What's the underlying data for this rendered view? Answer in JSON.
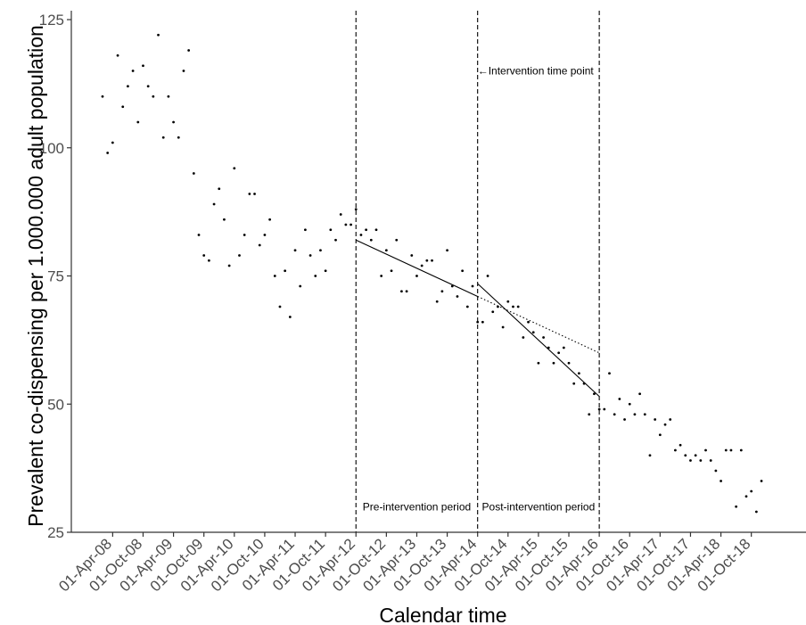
{
  "chart_data": {
    "type": "scatter",
    "title": "",
    "xlabel": "Calendar time",
    "ylabel": "Prevalent co-dispensing per 1.000.000 adult population",
    "ylim": [
      25,
      126
    ],
    "xlim": [
      -1.5,
      127.5
    ],
    "x_axis_note": "x values are months since the first observation month (Feb 2008)",
    "y_ticks": [
      25,
      50,
      75,
      100,
      125
    ],
    "x_ticks": [
      {
        "label": "01-Apr-08",
        "x": 2
      },
      {
        "label": "01-Oct-08",
        "x": 8
      },
      {
        "label": "01-Apr-09",
        "x": 14
      },
      {
        "label": "01-Oct-09",
        "x": 20
      },
      {
        "label": "01-Apr-10",
        "x": 26
      },
      {
        "label": "01-Oct-10",
        "x": 32
      },
      {
        "label": "01-Apr-11",
        "x": 38
      },
      {
        "label": "01-Oct-11",
        "x": 44
      },
      {
        "label": "01-Apr-12",
        "x": 50
      },
      {
        "label": "01-Oct-12",
        "x": 56
      },
      {
        "label": "01-Apr-13",
        "x": 62
      },
      {
        "label": "01-Oct-13",
        "x": 68
      },
      {
        "label": "01-Apr-14",
        "x": 74
      },
      {
        "label": "01-Oct-14",
        "x": 80
      },
      {
        "label": "01-Apr-15",
        "x": 86
      },
      {
        "label": "01-Oct-15",
        "x": 92
      },
      {
        "label": "01-Apr-16",
        "x": 98
      },
      {
        "label": "01-Oct-16",
        "x": 104
      },
      {
        "label": "01-Apr-17",
        "x": 110
      },
      {
        "label": "01-Oct-17",
        "x": 116
      },
      {
        "label": "01-Apr-18",
        "x": 122
      },
      {
        "label": "01-Oct-18",
        "x": 128
      }
    ],
    "points": [
      {
        "x": 0,
        "y": 110
      },
      {
        "x": 1,
        "y": 99
      },
      {
        "x": 2,
        "y": 101
      },
      {
        "x": 3,
        "y": 118
      },
      {
        "x": 4,
        "y": 108
      },
      {
        "x": 5,
        "y": 112
      },
      {
        "x": 6,
        "y": 115
      },
      {
        "x": 7,
        "y": 105
      },
      {
        "x": 8,
        "y": 116
      },
      {
        "x": 9,
        "y": 112
      },
      {
        "x": 10,
        "y": 110
      },
      {
        "x": 11,
        "y": 122
      },
      {
        "x": 12,
        "y": 102
      },
      {
        "x": 13,
        "y": 110
      },
      {
        "x": 14,
        "y": 105
      },
      {
        "x": 15,
        "y": 102
      },
      {
        "x": 16,
        "y": 115
      },
      {
        "x": 17,
        "y": 119
      },
      {
        "x": 18,
        "y": 95
      },
      {
        "x": 19,
        "y": 83
      },
      {
        "x": 20,
        "y": 79
      },
      {
        "x": 21,
        "y": 78
      },
      {
        "x": 22,
        "y": 89
      },
      {
        "x": 23,
        "y": 92
      },
      {
        "x": 24,
        "y": 86
      },
      {
        "x": 25,
        "y": 77
      },
      {
        "x": 26,
        "y": 96
      },
      {
        "x": 27,
        "y": 79
      },
      {
        "x": 28,
        "y": 83
      },
      {
        "x": 29,
        "y": 91
      },
      {
        "x": 30,
        "y": 91
      },
      {
        "x": 31,
        "y": 81
      },
      {
        "x": 32,
        "y": 83
      },
      {
        "x": 33,
        "y": 86
      },
      {
        "x": 34,
        "y": 75
      },
      {
        "x": 35,
        "y": 69
      },
      {
        "x": 36,
        "y": 76
      },
      {
        "x": 37,
        "y": 67
      },
      {
        "x": 38,
        "y": 80
      },
      {
        "x": 39,
        "y": 73
      },
      {
        "x": 40,
        "y": 84
      },
      {
        "x": 41,
        "y": 79
      },
      {
        "x": 42,
        "y": 75
      },
      {
        "x": 43,
        "y": 80
      },
      {
        "x": 44,
        "y": 76
      },
      {
        "x": 45,
        "y": 84
      },
      {
        "x": 46,
        "y": 82
      },
      {
        "x": 47,
        "y": 87
      },
      {
        "x": 48,
        "y": 85
      },
      {
        "x": 49,
        "y": 85
      },
      {
        "x": 50,
        "y": 88
      },
      {
        "x": 51,
        "y": 83
      },
      {
        "x": 52,
        "y": 84
      },
      {
        "x": 53,
        "y": 82
      },
      {
        "x": 54,
        "y": 84
      },
      {
        "x": 55,
        "y": 75
      },
      {
        "x": 56,
        "y": 80
      },
      {
        "x": 57,
        "y": 76
      },
      {
        "x": 58,
        "y": 82
      },
      {
        "x": 59,
        "y": 72
      },
      {
        "x": 60,
        "y": 72
      },
      {
        "x": 61,
        "y": 79
      },
      {
        "x": 62,
        "y": 75
      },
      {
        "x": 63,
        "y": 77
      },
      {
        "x": 64,
        "y": 78
      },
      {
        "x": 65,
        "y": 78
      },
      {
        "x": 66,
        "y": 70
      },
      {
        "x": 67,
        "y": 72
      },
      {
        "x": 68,
        "y": 80
      },
      {
        "x": 69,
        "y": 73
      },
      {
        "x": 70,
        "y": 71
      },
      {
        "x": 71,
        "y": 76
      },
      {
        "x": 72,
        "y": 69
      },
      {
        "x": 73,
        "y": 73
      },
      {
        "x": 74,
        "y": 66
      },
      {
        "x": 75,
        "y": 66
      },
      {
        "x": 76,
        "y": 75
      },
      {
        "x": 77,
        "y": 68
      },
      {
        "x": 78,
        "y": 69
      },
      {
        "x": 79,
        "y": 65
      },
      {
        "x": 80,
        "y": 70
      },
      {
        "x": 81,
        "y": 69
      },
      {
        "x": 82,
        "y": 69
      },
      {
        "x": 83,
        "y": 63
      },
      {
        "x": 84,
        "y": 66
      },
      {
        "x": 85,
        "y": 64
      },
      {
        "x": 86,
        "y": 58
      },
      {
        "x": 87,
        "y": 63
      },
      {
        "x": 88,
        "y": 61
      },
      {
        "x": 89,
        "y": 58
      },
      {
        "x": 90,
        "y": 60
      },
      {
        "x": 91,
        "y": 61
      },
      {
        "x": 92,
        "y": 58
      },
      {
        "x": 93,
        "y": 54
      },
      {
        "x": 94,
        "y": 56
      },
      {
        "x": 95,
        "y": 54
      },
      {
        "x": 96,
        "y": 48
      },
      {
        "x": 97,
        "y": 52
      },
      {
        "x": 98,
        "y": 49
      },
      {
        "x": 99,
        "y": 49
      },
      {
        "x": 100,
        "y": 56
      },
      {
        "x": 101,
        "y": 48
      },
      {
        "x": 102,
        "y": 51
      },
      {
        "x": 103,
        "y": 47
      },
      {
        "x": 104,
        "y": 50
      },
      {
        "x": 105,
        "y": 48
      },
      {
        "x": 106,
        "y": 52
      },
      {
        "x": 107,
        "y": 48
      },
      {
        "x": 108,
        "y": 40
      },
      {
        "x": 109,
        "y": 47
      },
      {
        "x": 110,
        "y": 44
      },
      {
        "x": 111,
        "y": 46
      },
      {
        "x": 112,
        "y": 47
      },
      {
        "x": 113,
        "y": 41
      },
      {
        "x": 114,
        "y": 42
      },
      {
        "x": 115,
        "y": 40
      },
      {
        "x": 116,
        "y": 39
      },
      {
        "x": 117,
        "y": 40
      },
      {
        "x": 118,
        "y": 39
      },
      {
        "x": 119,
        "y": 41
      },
      {
        "x": 120,
        "y": 39
      },
      {
        "x": 121,
        "y": 37
      },
      {
        "x": 122,
        "y": 35
      },
      {
        "x": 123,
        "y": 41
      },
      {
        "x": 124,
        "y": 41
      },
      {
        "x": 125,
        "y": 30
      },
      {
        "x": 126,
        "y": 41
      },
      {
        "x": 127,
        "y": 32
      },
      {
        "x": 128,
        "y": 33
      },
      {
        "x": 129,
        "y": 29
      },
      {
        "x": 130,
        "y": 35
      }
    ],
    "vertical_lines": [
      {
        "x": 50,
        "style": "dashed"
      },
      {
        "x": 74,
        "style": "dashed"
      },
      {
        "x": 98,
        "style": "dashed"
      }
    ],
    "trend_lines": [
      {
        "name": "pre-intervention fit",
        "style": "solid",
        "x": [
          50,
          74
        ],
        "y": [
          82,
          71
        ]
      },
      {
        "name": "post-intervention fit",
        "style": "solid",
        "x": [
          74,
          98
        ],
        "y": [
          73.5,
          51.5
        ]
      },
      {
        "name": "counterfactual trend",
        "style": "dotted",
        "x": [
          74,
          98
        ],
        "y": [
          71,
          60
        ]
      }
    ],
    "annotations": [
      {
        "text": "←Intervention time point",
        "x": 74,
        "y": 115
      },
      {
        "text": "Pre-intervention period",
        "x": 62,
        "y": 30
      },
      {
        "text": "Post-intervention period",
        "x": 86,
        "y": 30
      }
    ],
    "grid": false,
    "legend": "none",
    "colors": {
      "points": "#000000",
      "lines": "#000000",
      "axis": "#333333"
    }
  }
}
